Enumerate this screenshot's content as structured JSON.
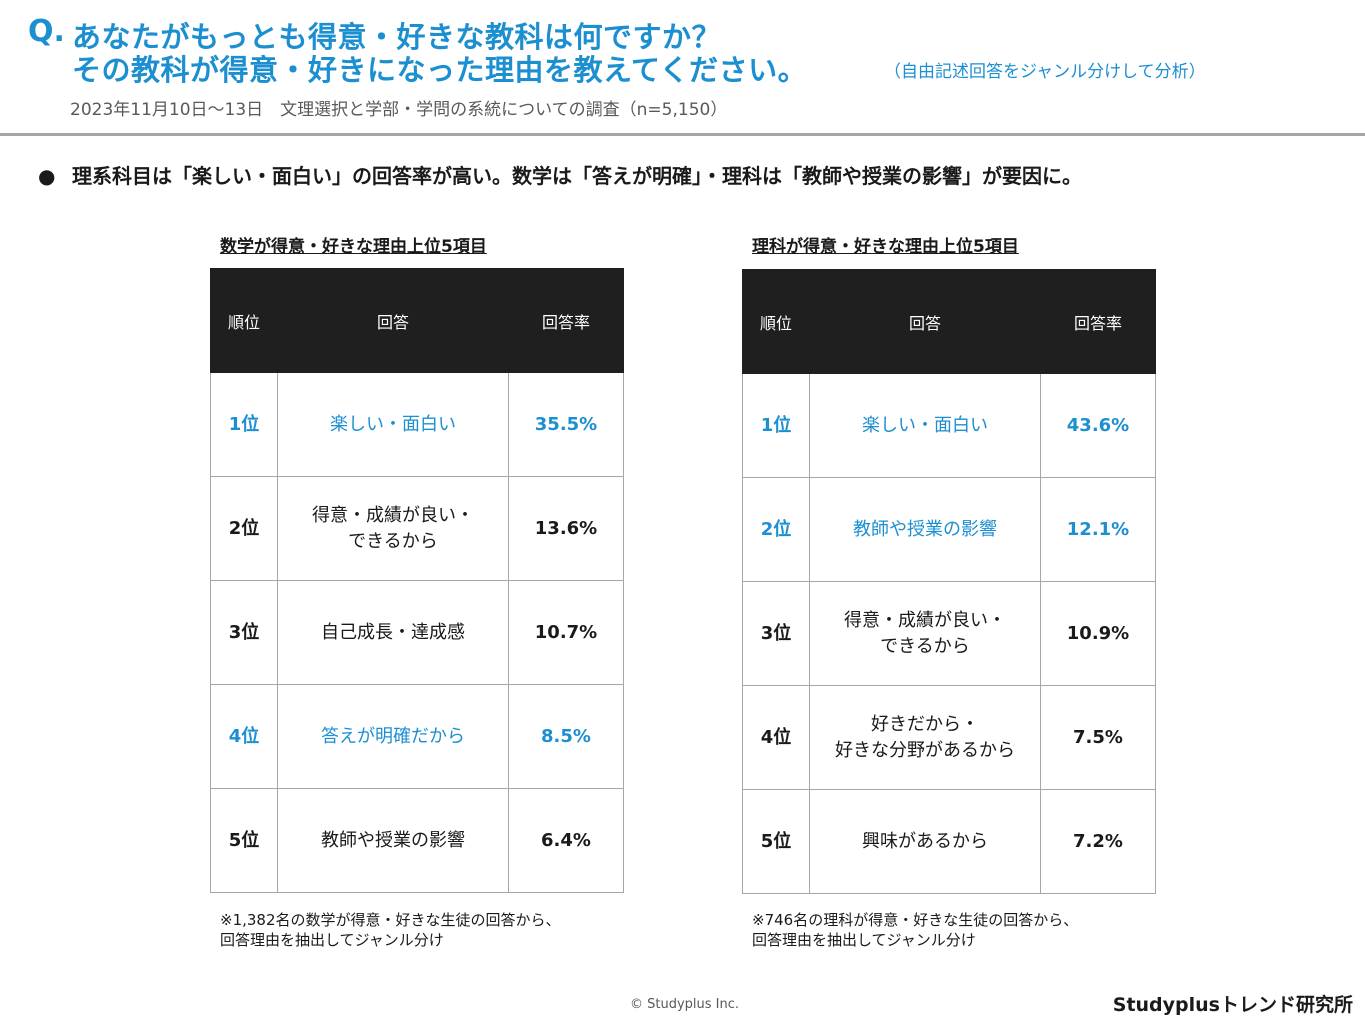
{
  "header": {
    "q_mark": "Q.",
    "question_line1": "あなたがもっとも得意・好きな教科は何ですか？",
    "question_line2": "その教科が得意・好きになった理由を教えてください。",
    "question_note": "（自由記述回答をジャンル分けして分析）",
    "survey_info": "2023年11月10日～13日　文理選択と学部・学問の系統についての調査（n=5,150）"
  },
  "summary": {
    "bullet": "●",
    "text": "理系科目は「楽しい・面白い」の回答率が高い。数学は「答えが明確」・理科は「教師や授業の影響」が要因に。"
  },
  "columns": {
    "rank": "順位",
    "answer": "回答",
    "rate": "回答率"
  },
  "math": {
    "title": "数学が得意・好きな理由上位5項目",
    "rows": [
      {
        "rank": "1位",
        "answer": "楽しい・面白い",
        "rate": "35.5%",
        "highlight": true
      },
      {
        "rank": "2位",
        "answer": "得意・成績が良い・\nできるから",
        "rate": "13.6%",
        "highlight": false
      },
      {
        "rank": "3位",
        "answer": "自己成長・達成感",
        "rate": "10.7%",
        "highlight": false
      },
      {
        "rank": "4位",
        "answer": "答えが明確だから",
        "rate": "8.5%",
        "highlight": true
      },
      {
        "rank": "5位",
        "answer": "教師や授業の影響",
        "rate": "6.4%",
        "highlight": false
      }
    ],
    "footnote_line1": "※1,382名の数学が得意・好きな生徒の回答から、",
    "footnote_line2": "回答理由を抽出してジャンル分け"
  },
  "science": {
    "title": "理科が得意・好きな理由上位5項目",
    "rows": [
      {
        "rank": "1位",
        "answer": "楽しい・面白い",
        "rate": "43.6%",
        "highlight": true
      },
      {
        "rank": "2位",
        "answer": "教師や授業の影響",
        "rate": "12.1%",
        "highlight": true
      },
      {
        "rank": "3位",
        "answer": "得意・成績が良い・\nできるから",
        "rate": "10.9%",
        "highlight": false
      },
      {
        "rank": "4位",
        "answer": "好きだから・\n好きな分野があるから",
        "rate": "7.5%",
        "highlight": false
      },
      {
        "rank": "5位",
        "answer": "興味があるから",
        "rate": "7.2%",
        "highlight": false
      }
    ],
    "footnote_line1": "※746名の理科が得意・好きな生徒の回答から、",
    "footnote_line2": "回答理由を抽出してジャンル分け"
  },
  "footer": {
    "copyright": "© Studyplus Inc.",
    "brand": "Studyplusトレンド研究所"
  }
}
